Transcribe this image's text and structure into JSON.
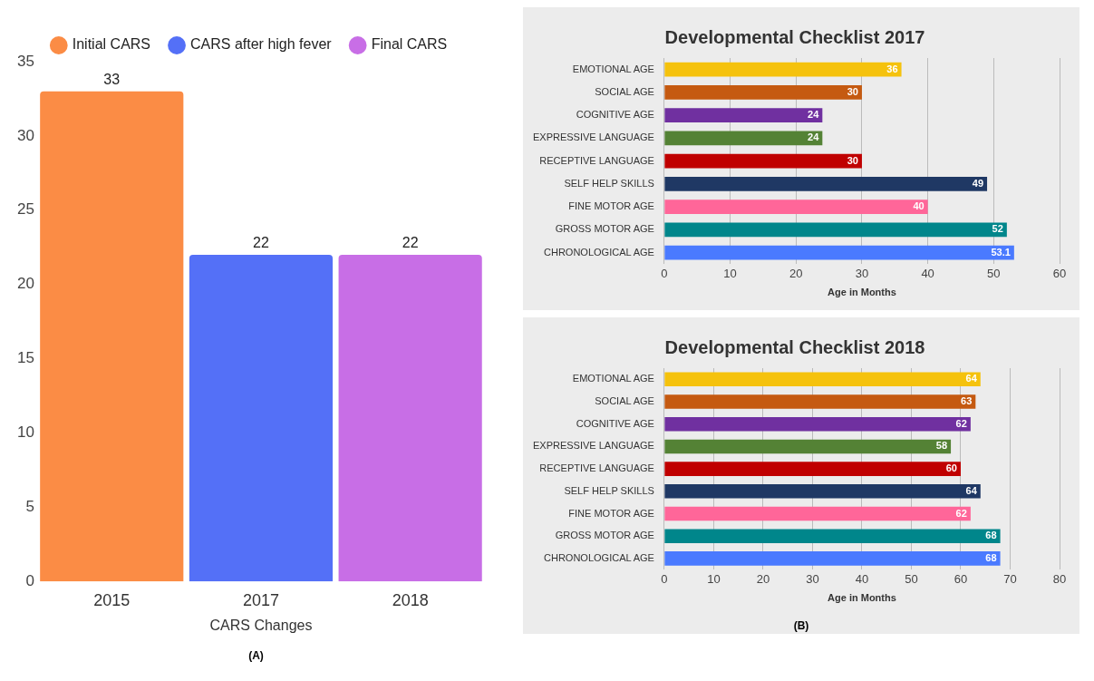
{
  "chart_data": [
    {
      "type": "bar",
      "categories": [
        "2015",
        "2017",
        "2018"
      ],
      "xlabel": "CARS Changes",
      "ylim": [
        0,
        35
      ],
      "yticks": [
        0,
        5,
        10,
        15,
        20,
        25,
        30,
        35
      ],
      "grid": false,
      "legend": "top",
      "data_labels": true,
      "annotations": [
        "(A)"
      ],
      "series": [
        {
          "name": "Initial CARS",
          "color": "#fb8c45",
          "values": [
            33,
            null,
            null
          ]
        },
        {
          "name": "CARS after high fever",
          "color": "#5470f7",
          "values": [
            null,
            22,
            null
          ]
        },
        {
          "name": "Final CARS",
          "color": "#c86ee6",
          "values": [
            null,
            null,
            22
          ]
        }
      ]
    },
    {
      "type": "bar",
      "orientation": "horizontal",
      "title": "Developmental Checklist 2017",
      "xlabel": "Age in Months",
      "categories": [
        "EMOTIONAL AGE",
        "SOCIAL AGE",
        "COGNITIVE AGE",
        "EXPRESSIVE LANGUAGE",
        "RECEPTIVE LANGUAGE",
        "SELF HELP SKILLS",
        "FINE MOTOR AGE",
        "GROSS MOTOR AGE",
        "CHRONOLOGICAL AGE"
      ],
      "xlim": [
        0,
        60
      ],
      "xticks": [
        0,
        10,
        20,
        30,
        40,
        50,
        60
      ],
      "grid": "x",
      "data_labels": true,
      "values": [
        36,
        30,
        24,
        24,
        30,
        49,
        40,
        52,
        53.1
      ],
      "colors": [
        "#f5c20d",
        "#c55a11",
        "#7030a0",
        "#548235",
        "#c00000",
        "#1f3864",
        "#ff6699",
        "#00868b",
        "#4a7aff"
      ]
    },
    {
      "type": "bar",
      "orientation": "horizontal",
      "title": "Developmental Checklist 2018",
      "xlabel": "Age in Months",
      "categories": [
        "EMOTIONAL AGE",
        "SOCIAL AGE",
        "COGNITIVE AGE",
        "EXPRESSIVE LANGUAGE",
        "RECEPTIVE LANGUAGE",
        "SELF HELP SKILLS",
        "FINE MOTOR AGE",
        "GROSS MOTOR AGE",
        "CHRONOLOGICAL AGE"
      ],
      "xlim": [
        0,
        80
      ],
      "xticks": [
        0,
        10,
        20,
        30,
        40,
        50,
        60,
        70,
        80
      ],
      "grid": "x",
      "data_labels": true,
      "annotations": [
        "(B)"
      ],
      "values": [
        64,
        63,
        62,
        58,
        60,
        64,
        62,
        68,
        68
      ],
      "colors": [
        "#f5c20d",
        "#c55a11",
        "#7030a0",
        "#548235",
        "#c00000",
        "#1f3864",
        "#ff6699",
        "#00868b",
        "#4a7aff"
      ]
    }
  ]
}
